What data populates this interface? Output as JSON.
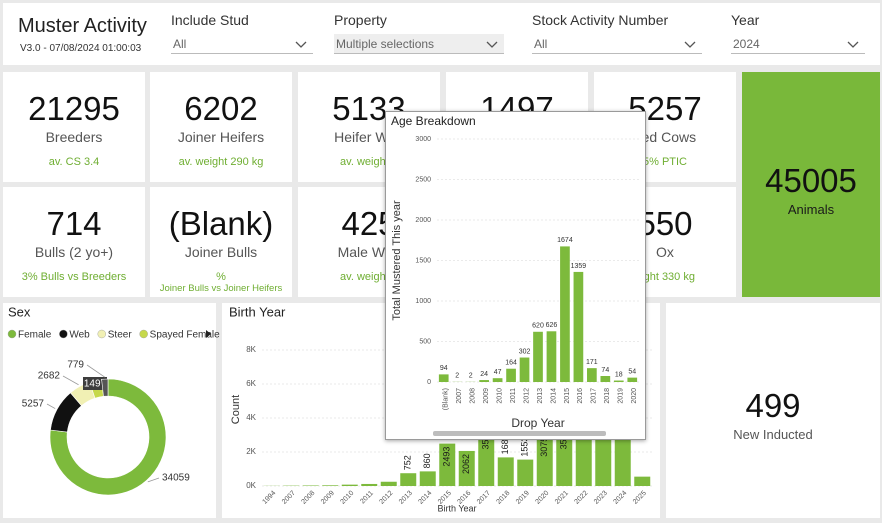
{
  "header": {
    "title": "Muster Activity",
    "version": "V3.0 - 07/08/2024 01:00:03"
  },
  "filters": [
    {
      "label": "Include Stud",
      "value": "All"
    },
    {
      "label": "Property",
      "value": "Multiple selections"
    },
    {
      "label": "Stock Activity Number",
      "value": "All"
    },
    {
      "label": "Year",
      "value": "2024"
    }
  ],
  "cards": [
    {
      "value": 21295,
      "label": "Breeders",
      "notes": [
        "av. CS 3.4"
      ]
    },
    {
      "value": 6202,
      "label": "Joiner Heifers",
      "notes": [
        "av. weight 290 kg"
      ]
    },
    {
      "value": 5133,
      "label": "Heifer Wea",
      "notes": [
        "av. weight 2"
      ]
    },
    {
      "value": 1497
    },
    {
      "value": 5257,
      "label": "bed Cows",
      "notes": [
        "5% PTIC"
      ]
    },
    {
      "value": 714,
      "label": "Bulls (2 yo+)",
      "notes": [
        "3% Bulls vs Breeders"
      ]
    },
    {
      "value": "(Blank)",
      "label": "Joiner Bulls",
      "notes": [
        "%",
        "Joiner Bulls vs Joiner Heifers"
      ]
    },
    {
      "value": 425,
      "label": "Male Wea",
      "notes": [
        "av. weight 3"
      ]
    },
    {
      "value": 550,
      "label": "Ox",
      "notes": [
        "eight 330 kg"
      ]
    }
  ],
  "highlight": {
    "value": 45005,
    "label": "Animals"
  },
  "inducted": {
    "value": 499,
    "label": "New Inducted"
  },
  "chart_data": [
    {
      "type": "pie",
      "title": "Sex",
      "categories": [
        "Female",
        "Web",
        "Steer",
        "Spayed Female",
        null
      ],
      "values": [
        34059,
        5257,
        2682,
        1497,
        779
      ],
      "colors": [
        "#7dba3c",
        "#111111",
        "#f1f0b4",
        "#c6d84b",
        "#555555"
      ],
      "legend": "top"
    },
    {
      "type": "bar",
      "title": "Birth Year",
      "categories": [
        "1994",
        "2007",
        "2008",
        "2009",
        "2010",
        "2011",
        "2012",
        "2013",
        "2014",
        "2015",
        "2016",
        "2017",
        "2018",
        "2019",
        "2020",
        "2021",
        "2022",
        "2023",
        "2024",
        "2025"
      ],
      "values": [
        10,
        20,
        30,
        40,
        80,
        120,
        250,
        752,
        860,
        2493,
        2062,
        3503,
        1683,
        1553,
        3075,
        3506,
        8228,
        6019,
        6553,
        550
      ],
      "value_labels": [
        null,
        null,
        null,
        null,
        null,
        null,
        null,
        "752",
        "860",
        "2493",
        "2062",
        "3503",
        "1683",
        "1553",
        "3075",
        "3506",
        "8228",
        "6019",
        "6553",
        null
      ],
      "color": "#7dba3c",
      "xlabel": "Birth Year",
      "ylabel": "Count",
      "ylim": [
        0,
        9000
      ],
      "yticks": [
        {
          "value": 0,
          "label": "0K"
        },
        {
          "value": 2000,
          "label": "2K"
        },
        {
          "value": 4000,
          "label": "4K"
        },
        {
          "value": 6000,
          "label": "6K"
        },
        {
          "value": 8000,
          "label": "8K"
        }
      ],
      "grid": true
    },
    {
      "type": "bar",
      "title": "Age Breakdown",
      "categories": [
        "(Blank)",
        "2007",
        "2008",
        "2009",
        "2010",
        "2011",
        "2012",
        "2013",
        "2014",
        "2015",
        "2016",
        "2017",
        "2018",
        "2019",
        "2020"
      ],
      "values": [
        94,
        2,
        2,
        24,
        47,
        164,
        302,
        620,
        626,
        1674,
        1359,
        171,
        74,
        18,
        54
      ],
      "color": "#7dba3c",
      "xlabel": "Drop Year",
      "ylabel": "Total Mustered This year",
      "ylim": [
        0,
        3000
      ],
      "yticks": [
        0,
        500,
        1000,
        1500,
        2000,
        2500,
        3000
      ],
      "grid": true
    }
  ]
}
